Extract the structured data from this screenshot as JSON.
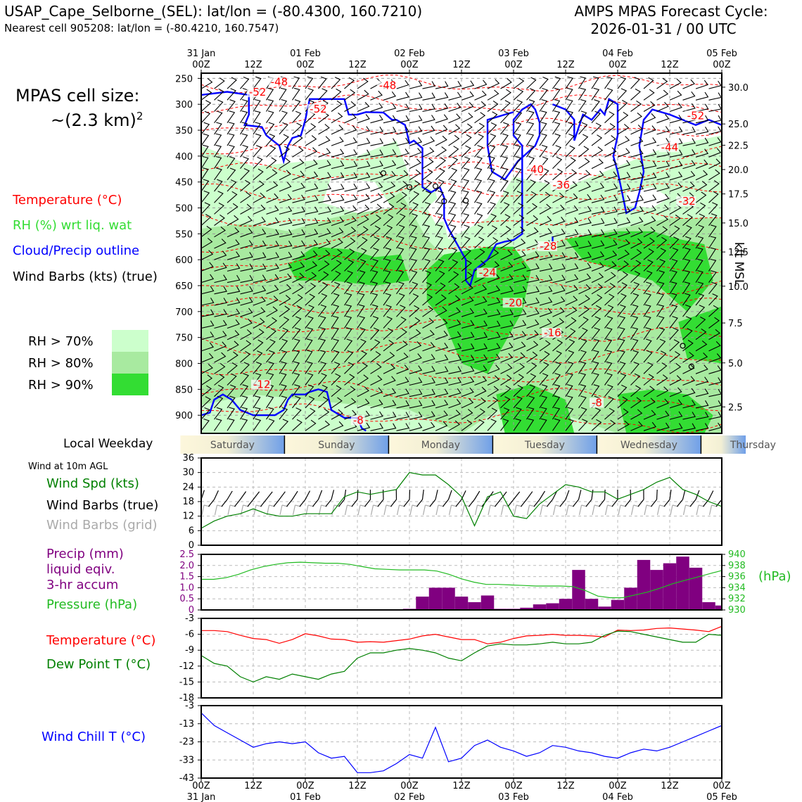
{
  "header": {
    "station_line": "USAP_Cape_Selborne_(SEL): lat/lon = (-80.4300, 160.7210)",
    "nearest_line": "Nearest cell 905208: lat/lon = (-80.4210, 160.7547)",
    "cycle_line1": "AMPS MPAS Forecast Cycle:",
    "cycle_line2": "2026-01-31 / 00 UTC"
  },
  "cell_size": {
    "line1": "MPAS cell size:",
    "line2": "~(2.3 km)",
    "sup": "2"
  },
  "legend": {
    "temperature": "Temperature (°C)",
    "rh": "RH (%) wrt liq. wat",
    "cloud": "Cloud/Precip outline",
    "barbs": "Wind Barbs (kts) (true)",
    "rh70": "RH > 70%",
    "rh80": "RH > 80%",
    "rh90": "RH > 90%"
  },
  "colors": {
    "temperature": "#ff0000",
    "rh_text": "#33dd33",
    "cloud": "#0000ff",
    "rh70": "#ccffcc",
    "rh80": "#a8eaa0",
    "rh90": "#33dd33",
    "wind_speed": "#008000",
    "barb_grid": "#aaaaaa",
    "precip": "#800080",
    "pressure": "#22bb22",
    "dewpoint": "#008000",
    "windchill": "#0000ff"
  },
  "time_axis": {
    "top_dates": [
      "31 Jan",
      "",
      "01 Feb",
      "",
      "02 Feb",
      "",
      "03 Feb",
      "",
      "04 Feb",
      "",
      "05 Feb"
    ],
    "hours": [
      "00Z",
      "12Z",
      "00Z",
      "12Z",
      "00Z",
      "12Z",
      "00Z",
      "12Z",
      "00Z",
      "12Z",
      "00Z"
    ],
    "bottom_dates": [
      "31 Jan",
      "",
      "01 Feb",
      "",
      "02 Feb",
      "",
      "03 Feb",
      "",
      "04 Feb",
      "",
      "05 Feb"
    ]
  },
  "weekday": {
    "label": "Local Weekday",
    "days": [
      "Saturday",
      "Sunday",
      "Monday",
      "Tuesday",
      "Wednesday",
      "Thursday"
    ]
  },
  "panels_text": {
    "wind10_title": "Wind at 10m AGL",
    "wind_spd": "Wind Spd (kts)",
    "barbs_true": "Wind Barbs (true)",
    "barbs_grid": "Wind Barbs (grid)",
    "precip1": "Precip (mm)",
    "precip2": "liquid eqiv.",
    "precip3": "3-hr accum",
    "pressure": "Pressure (hPa)",
    "hpa": "(hPa)",
    "temperature": "Temperature (°C)",
    "dewpoint": "Dew Point T (°C)",
    "windchill": "Wind Chill T (°C)",
    "kft": "kft MSL"
  },
  "chart_data": [
    {
      "type": "heatmap",
      "title": "Time-height cross section",
      "yaxis_pressure_ticks": [
        250,
        300,
        350,
        400,
        450,
        500,
        550,
        600,
        650,
        700,
        750,
        800,
        850,
        900
      ],
      "yaxis_kft_ticks": [
        {
          "label": "30.0",
          "p": 267
        },
        {
          "label": "25.0",
          "p": 338
        },
        {
          "label": "22.5",
          "p": 379
        },
        {
          "label": "20.0",
          "p": 426
        },
        {
          "label": "17.5",
          "p": 473
        },
        {
          "label": "15.0",
          "p": 529
        },
        {
          "label": "12.5",
          "p": 585
        },
        {
          "label": "10.0",
          "p": 651
        },
        {
          "label": "7.5",
          "p": 722
        },
        {
          "label": "5.0",
          "p": 799
        },
        {
          "label": "2.5",
          "p": 884
        }
      ],
      "isotherm_labels": [
        {
          "text": "-48",
          "t": 16,
          "p": 261
        },
        {
          "text": "-52",
          "t": 11,
          "p": 281
        },
        {
          "text": "-48",
          "t": 41,
          "p": 268
        },
        {
          "text": "-52",
          "t": 25,
          "p": 313
        },
        {
          "text": "-52",
          "t": 112,
          "p": 326
        },
        {
          "text": "-44",
          "t": 106,
          "p": 387
        },
        {
          "text": "-40",
          "t": 75,
          "p": 430
        },
        {
          "text": "-36",
          "t": 81,
          "p": 460
        },
        {
          "text": "-32",
          "t": 110,
          "p": 491
        },
        {
          "text": "-28",
          "t": 78,
          "p": 578
        },
        {
          "text": "-24",
          "t": 64,
          "p": 629
        },
        {
          "text": "-20",
          "t": 70,
          "p": 687
        },
        {
          "text": "-16",
          "t": 79,
          "p": 745
        },
        {
          "text": "-12",
          "t": 12,
          "p": 845
        },
        {
          "text": "-8",
          "t": 35,
          "p": 914
        },
        {
          "text": "-8",
          "t": 90,
          "p": 880
        }
      ]
    },
    {
      "type": "line",
      "title": "Wind at 10m AGL",
      "ylim": [
        0,
        36
      ],
      "yticks": [
        0,
        6,
        12,
        18,
        24,
        30,
        36
      ],
      "x_hours": [
        0,
        3,
        6,
        9,
        12,
        15,
        18,
        21,
        24,
        27,
        30,
        33,
        36,
        39,
        42,
        45,
        48,
        51,
        54,
        57,
        60,
        63,
        66,
        69,
        72,
        75,
        78,
        81,
        84,
        87,
        90,
        93,
        96,
        99,
        102,
        105,
        108,
        111,
        114,
        117,
        120
      ],
      "wind_speed": [
        7,
        10,
        12,
        13,
        15,
        13,
        12,
        12,
        13,
        13,
        13,
        20,
        22,
        21,
        22,
        23,
        30,
        29,
        29,
        25,
        20,
        8,
        20,
        22,
        12,
        11,
        17,
        21,
        25,
        24,
        22,
        22,
        19,
        21,
        23,
        26,
        28,
        23,
        21,
        18,
        16
      ]
    },
    {
      "type": "bar",
      "title": "Precip and Pressure",
      "precip_ylim": [
        0,
        2.5
      ],
      "precip_yticks": [
        "0",
        "0.5",
        "1.0",
        "1.5",
        "2.0",
        "2.5"
      ],
      "pressure_ylim": [
        930,
        940
      ],
      "pressure_yticks": [
        "930",
        "932",
        "934",
        "936",
        "938",
        "940"
      ],
      "precip_bars": [
        0,
        0,
        0,
        0,
        0,
        0,
        0,
        0,
        0,
        0,
        0,
        0,
        0,
        0,
        0,
        0,
        0.05,
        0.6,
        1.0,
        1.0,
        0.6,
        0.35,
        0.65,
        0.05,
        0.05,
        0.1,
        0.25,
        0.3,
        0.5,
        1.8,
        0.5,
        0.15,
        0.45,
        1.0,
        2.25,
        1.8,
        2.1,
        2.4,
        1.9,
        0.35,
        0.2,
        0.5,
        0.55
      ],
      "pressure": [
        935.5,
        935.5,
        935.8,
        936.4,
        937.2,
        937.8,
        938.2,
        938.5,
        938.6,
        938.5,
        938.4,
        938.4,
        938.2,
        937.8,
        937.4,
        937.3,
        937.2,
        937.2,
        937.2,
        937.0,
        936.4,
        935.6,
        935.0,
        934.6,
        934.6,
        934.5,
        934.4,
        934.3,
        934.3,
        934.3,
        934.2,
        933.5,
        932.5,
        932.2,
        932.2,
        932.7,
        933.2,
        933.9,
        934.7,
        935.3,
        935.9,
        936.5,
        937.1
      ]
    },
    {
      "type": "line",
      "title": "Temperature and Dew Point",
      "ylim": [
        -18,
        -3
      ],
      "yticks": [
        "-3",
        "-6",
        "-9",
        "-12",
        "-15",
        "-18"
      ],
      "x_hours": [
        0,
        3,
        6,
        9,
        12,
        15,
        18,
        21,
        24,
        27,
        30,
        33,
        36,
        39,
        42,
        45,
        48,
        51,
        54,
        57,
        60,
        63,
        66,
        69,
        72,
        75,
        78,
        81,
        84,
        87,
        90,
        93,
        96,
        99,
        102,
        105,
        108,
        111,
        114,
        117,
        120
      ],
      "temperature": [
        -5.3,
        -5.3,
        -5.5,
        -6.2,
        -6.8,
        -7.0,
        -7.7,
        -7.0,
        -5.9,
        -6.3,
        -6.9,
        -7.0,
        -7.5,
        -7.4,
        -7.5,
        -7.2,
        -6.9,
        -6.3,
        -6.0,
        -6.5,
        -7.0,
        -7.0,
        -7.8,
        -7.5,
        -6.8,
        -6.3,
        -6.2,
        -6.0,
        -6.2,
        -6.2,
        -6.3,
        -6.5,
        -5.2,
        -5.3,
        -5.2,
        -4.9,
        -4.8,
        -5.0,
        -5.2,
        -5.5,
        -4.5
      ],
      "dewpoint": [
        -10,
        -11.5,
        -12,
        -14,
        -15,
        -14,
        -14.5,
        -13.5,
        -14,
        -14.5,
        -13.5,
        -13,
        -10.5,
        -9.5,
        -9.5,
        -9,
        -8.7,
        -9,
        -9.5,
        -10.5,
        -11,
        -9.5,
        -8.2,
        -7.8,
        -8,
        -8,
        -7.8,
        -7.5,
        -7.8,
        -7.8,
        -7.5,
        -6.2,
        -5.4,
        -5.5,
        -6,
        -6.5,
        -7.0,
        -7.5,
        -7.5,
        -6.0,
        -6.2
      ]
    },
    {
      "type": "line",
      "title": "Wind Chill",
      "ylim": [
        -43,
        -3
      ],
      "yticks": [
        "-3",
        "-13",
        "-23",
        "-33",
        "-43"
      ],
      "x_hours": [
        0,
        3,
        6,
        9,
        12,
        15,
        18,
        21,
        24,
        27,
        30,
        33,
        36,
        39,
        42,
        45,
        48,
        51,
        54,
        57,
        60,
        63,
        66,
        69,
        72,
        75,
        78,
        81,
        84,
        87,
        90,
        93,
        96,
        99,
        102,
        105,
        108,
        111,
        114,
        117,
        120
      ],
      "windchill": [
        -7,
        -14,
        -18,
        -22,
        -26,
        -24,
        -23,
        -24,
        -23,
        -29,
        -32,
        -31,
        -40,
        -40,
        -39,
        -35,
        -30,
        -32,
        -15,
        -34,
        -32,
        -25,
        -22,
        -26,
        -28,
        -31,
        -29,
        -25,
        -26,
        -28,
        -29,
        -31,
        -32,
        -29,
        -27,
        -28,
        -26,
        -23,
        -20,
        -17,
        -14
      ]
    }
  ]
}
